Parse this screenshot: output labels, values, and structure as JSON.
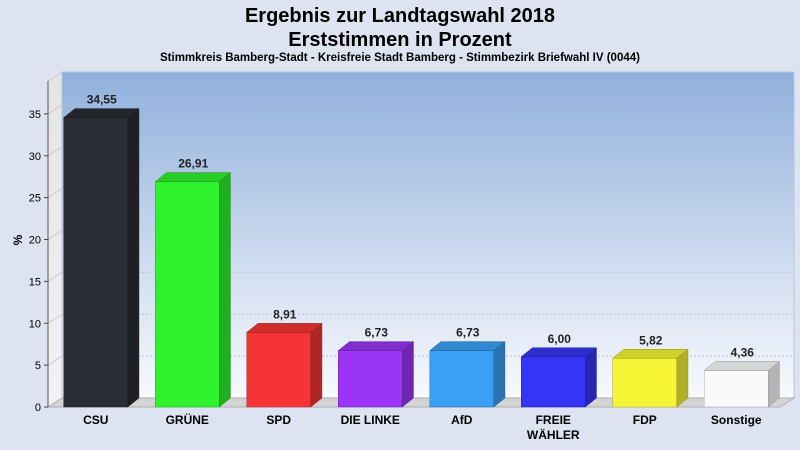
{
  "chart_data": {
    "type": "bar",
    "title_lines": [
      "Ergebnis zur Landtagswahl 2018",
      "Erststimmen in Prozent"
    ],
    "subtitle": "Stimmkreis Bamberg-Stadt - Kreisfreie Stadt Bamberg - Stimmbezirk Briefwahl IV (0044)",
    "ylabel": "%",
    "ylim": [
      0,
      40
    ],
    "yticks": [
      0,
      5,
      10,
      15,
      20,
      25,
      30,
      35
    ],
    "grid": true,
    "categories": [
      {
        "label": [
          "CSU"
        ],
        "value": 34.55,
        "display": "34,55",
        "color": "#2a2d35"
      },
      {
        "label": [
          "GRÜNE"
        ],
        "value": 26.91,
        "display": "26,91",
        "color": "#2ef22e"
      },
      {
        "label": [
          "SPD"
        ],
        "value": 8.91,
        "display": "8,91",
        "color": "#f53535"
      },
      {
        "label": [
          "DIE LINKE"
        ],
        "value": 6.73,
        "display": "6,73",
        "color": "#9a35f5"
      },
      {
        "label": [
          "AfD"
        ],
        "value": 6.73,
        "display": "6,73",
        "color": "#3aa0f5"
      },
      {
        "label": [
          "FREIE",
          "WÄHLER"
        ],
        "value": 6.0,
        "display": "6,00",
        "color": "#3535f5"
      },
      {
        "label": [
          "FDP"
        ],
        "value": 5.82,
        "display": "5,82",
        "color": "#f5f535"
      },
      {
        "label": [
          "Sonstige"
        ],
        "value": 4.36,
        "display": "4,36",
        "color": "#fafafa"
      }
    ]
  }
}
